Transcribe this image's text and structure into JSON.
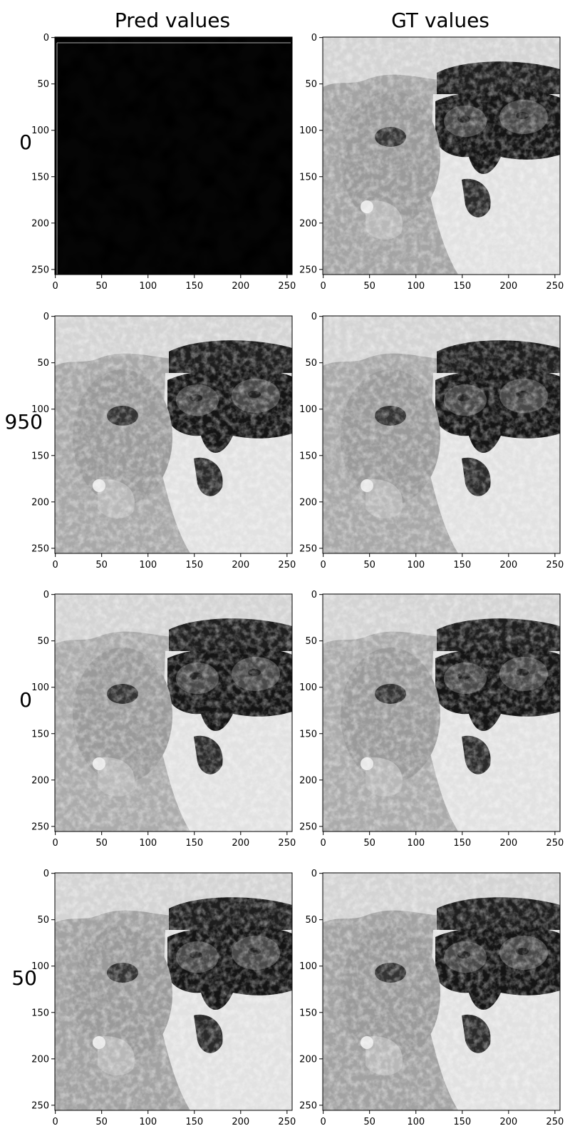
{
  "column_titles": [
    "Pred values",
    "GT values"
  ],
  "row_labels": [
    "0",
    "950",
    "0",
    "50"
  ],
  "axis": {
    "x_ticks": [
      "0",
      "50",
      "100",
      "150",
      "200",
      "250"
    ],
    "y_ticks": [
      "0",
      "50",
      "100",
      "150",
      "200",
      "250"
    ],
    "range": [
      0,
      255
    ]
  },
  "panels": [
    {
      "row": 0,
      "col": 0,
      "content": "noise"
    },
    {
      "row": 0,
      "col": 1,
      "content": "photo"
    },
    {
      "row": 1,
      "col": 0,
      "content": "photo"
    },
    {
      "row": 1,
      "col": 1,
      "content": "photo"
    },
    {
      "row": 2,
      "col": 0,
      "content": "photo"
    },
    {
      "row": 2,
      "col": 1,
      "content": "photo"
    },
    {
      "row": 3,
      "col": 0,
      "content": "photo"
    },
    {
      "row": 3,
      "col": 1,
      "content": "photo"
    }
  ],
  "colors": {
    "background": "#ffffff",
    "grayscale_cmap": "gray"
  }
}
